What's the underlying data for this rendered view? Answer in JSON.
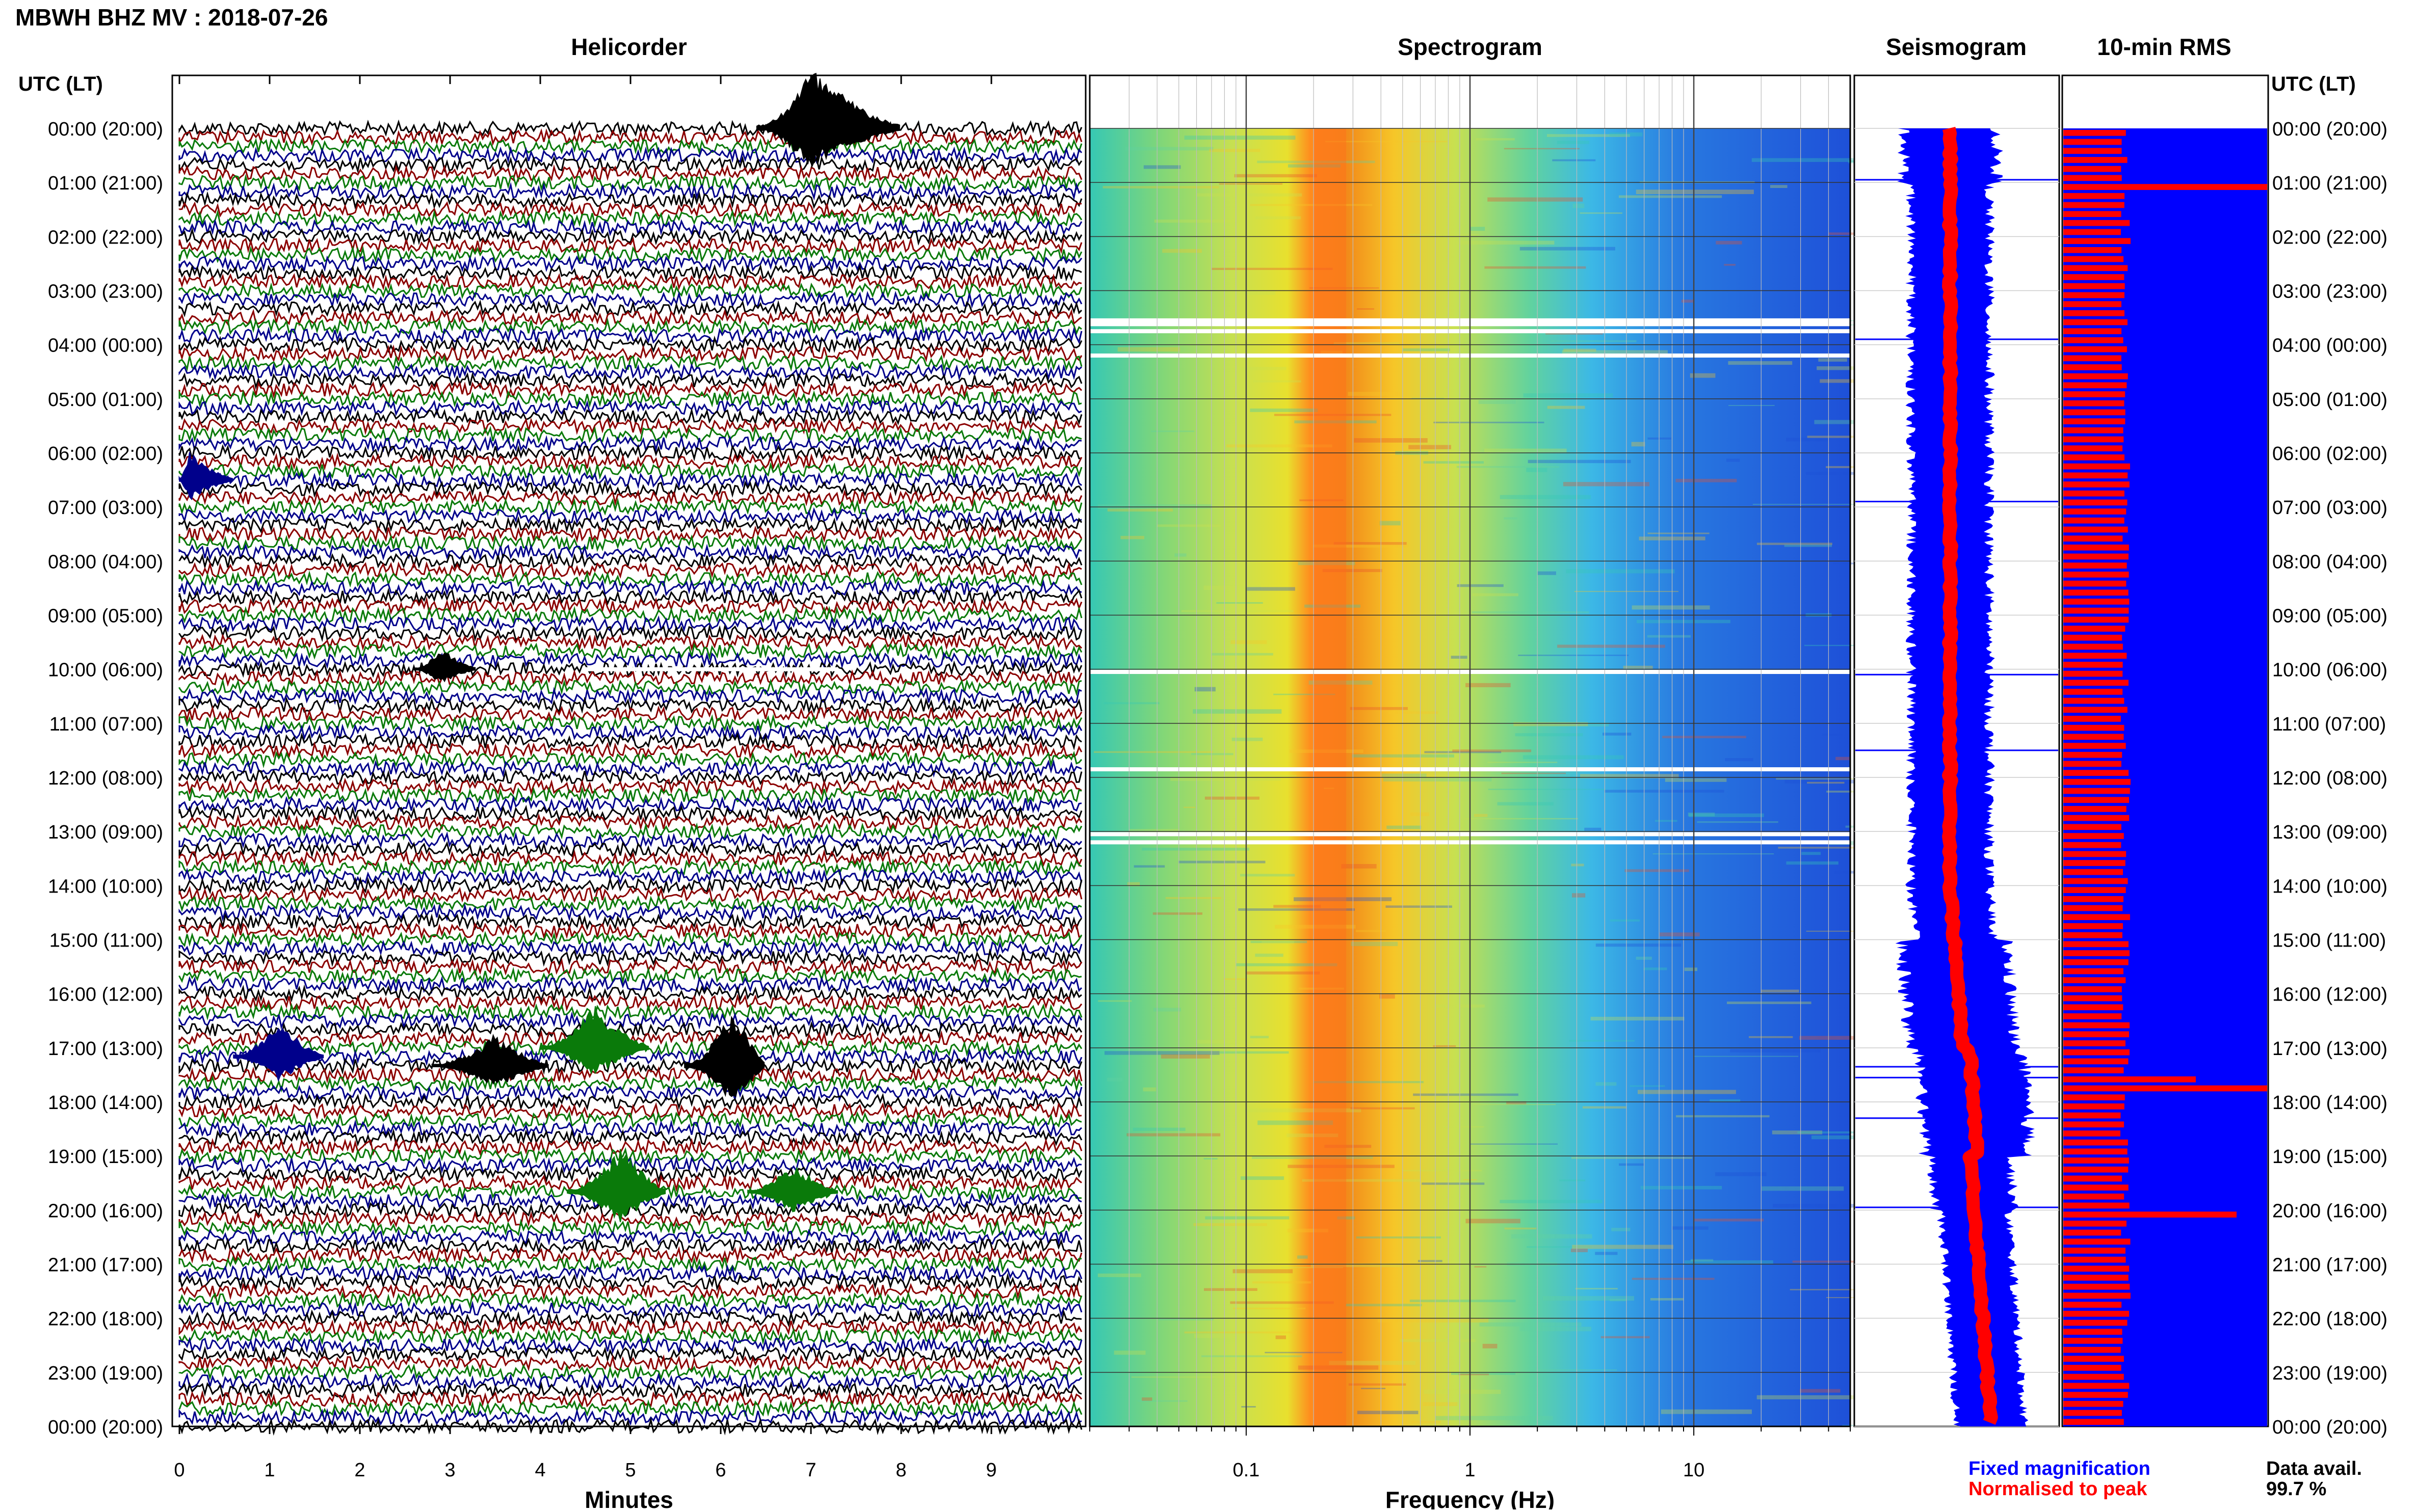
{
  "header": {
    "title": "MBWH BHZ MV : 2018-07-26",
    "utc_label": "UTC (LT)"
  },
  "panels": {
    "helicorder": "Helicorder",
    "spectrogram": "Spectrogram",
    "seismogram": "Seismogram",
    "rms": "10-min RMS"
  },
  "footer": {
    "fixed_magnification": "Fixed magnification",
    "normalised_to_peak": "Normalised to peak",
    "data_avail_label": "Data avail.",
    "data_avail_value": "99.7 %"
  },
  "colors": {
    "trace_cycle": [
      "#000000",
      "#8b0000",
      "#0a7a0a",
      "#00008b"
    ],
    "fixed_magnification": "#0000ff",
    "normalised_to_peak": "#ff0000",
    "rms_background": "#0000ff",
    "rms_bar": "#ff0000"
  },
  "chart_data": {
    "type": "heatmap",
    "time_labels": [
      "00:00 (20:00)",
      "01:00 (21:00)",
      "02:00 (22:00)",
      "03:00 (23:00)",
      "04:00 (00:00)",
      "05:00 (01:00)",
      "06:00 (02:00)",
      "07:00 (03:00)",
      "08:00 (04:00)",
      "09:00 (05:00)",
      "10:00 (06:00)",
      "11:00 (07:00)",
      "12:00 (08:00)",
      "13:00 (09:00)",
      "14:00 (10:00)",
      "15:00 (11:00)",
      "16:00 (12:00)",
      "17:00 (13:00)",
      "18:00 (14:00)",
      "19:00 (15:00)",
      "20:00 (16:00)",
      "21:00 (17:00)",
      "22:00 (18:00)",
      "23:00 (19:00)",
      "00:00 (20:00)"
    ],
    "helicorder": {
      "xlabel": "Minutes",
      "xticks": [
        "0",
        "1",
        "2",
        "3",
        "4",
        "5",
        "6",
        "7",
        "8",
        "9"
      ],
      "xlim": [
        0,
        10
      ],
      "events": [
        {
          "hour": 0.0,
          "minute_start": 6.4,
          "minute_end": 8.0,
          "peak_minute": 7.0,
          "amplitude": 1.0
        },
        {
          "hour": 6.5,
          "minute_start": 0.0,
          "minute_end": 0.6,
          "peak_minute": 0.1,
          "amplitude": 0.5
        },
        {
          "hour": 10.0,
          "minute_start": 2.6,
          "minute_end": 3.3,
          "peak_minute": 2.9,
          "amplitude": 0.35
        },
        {
          "hour": 17.17,
          "minute_start": 0.6,
          "minute_end": 1.6,
          "peak_minute": 1.1,
          "amplitude": 0.6
        },
        {
          "hour": 17.33,
          "minute_start": 2.8,
          "minute_end": 4.1,
          "peak_minute": 3.5,
          "amplitude": 0.55
        },
        {
          "hour": 17.0,
          "minute_start": 4.0,
          "minute_end": 5.2,
          "peak_minute": 4.6,
          "amplitude": 0.7
        },
        {
          "hour": 17.33,
          "minute_start": 5.6,
          "minute_end": 6.5,
          "peak_minute": 6.15,
          "amplitude": 1.0
        },
        {
          "hour": 19.67,
          "minute_start": 4.3,
          "minute_end": 5.4,
          "peak_minute": 4.9,
          "amplitude": 0.75
        },
        {
          "hour": 19.67,
          "minute_start": 6.3,
          "minute_end": 7.3,
          "peak_minute": 6.8,
          "amplitude": 0.5
        }
      ]
    },
    "spectrogram": {
      "xlabel": "Frequency (Hz)",
      "xscale": "log",
      "xlim": [
        0.02,
        50
      ],
      "xticks": [
        {
          "value": 0.1,
          "label": "0.1"
        },
        {
          "value": 1,
          "label": "1"
        },
        {
          "value": 10,
          "label": "10"
        }
      ],
      "colormap": "jet",
      "gaps_hours": [
        3.55,
        3.62,
        3.75,
        4.2,
        10.05,
        11.85,
        13.05,
        13.2
      ]
    },
    "seismogram": {
      "series": [
        {
          "name": "Fixed magnification",
          "color": "#0000ff"
        },
        {
          "name": "Normalised to peak",
          "color": "#ff0000"
        }
      ]
    },
    "rms": {
      "spikes": [
        {
          "hour": 0.95,
          "value": 1.0
        },
        {
          "hour": 17.45,
          "value": 0.65
        },
        {
          "hour": 17.6,
          "value": 1.0
        },
        {
          "hour": 19.95,
          "value": 0.85
        }
      ]
    }
  }
}
